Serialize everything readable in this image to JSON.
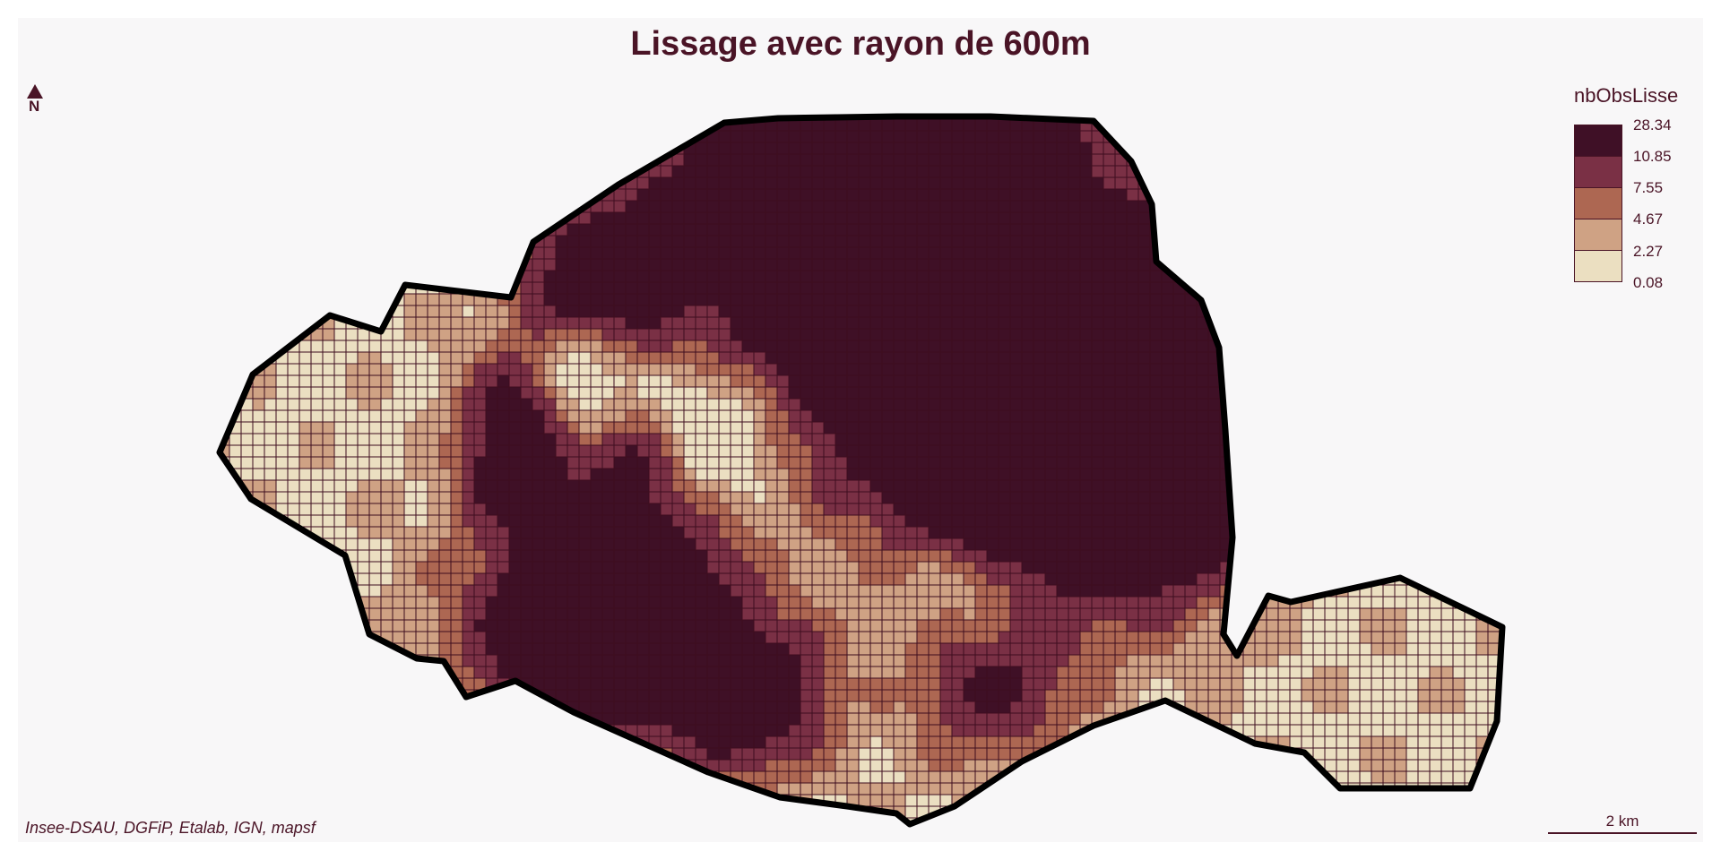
{
  "title": "Lissage avec rayon de 600m",
  "north_label": "N",
  "legend": {
    "title": "nbObsLisse",
    "breaks": [
      "28.34",
      "10.85",
      "7.55",
      "4.67",
      "2.27",
      "0.08"
    ],
    "colors": [
      "#3f1026",
      "#7a3045",
      "#ad6752",
      "#cfa284",
      "#ebdfc1"
    ]
  },
  "source": "Insee-DSAU, DGFiP, Etalab, IGN, mapsf",
  "scale": {
    "label": "2 km"
  },
  "colors": {
    "title": "#4a1426",
    "cell_border": "#3e0d1e",
    "boundary": "#000000",
    "background": "#f8f7f8"
  }
}
